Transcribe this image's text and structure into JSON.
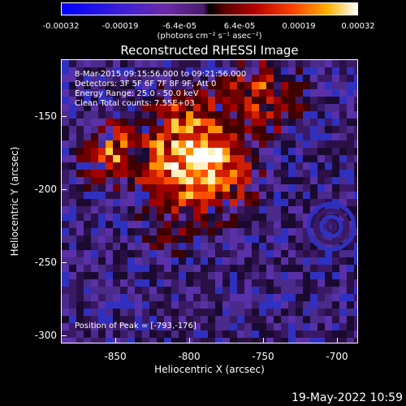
{
  "colorbar": {
    "ticks": [
      "-0.00032",
      "-0.00019",
      "-6.4e-05",
      "6.4e-05",
      "0.00019",
      "0.00032"
    ],
    "unit": "(photons cm⁻² s⁻¹ asec⁻²)"
  },
  "plot": {
    "title": "Reconstructed RHESSI Image",
    "info_lines": [
      "8-Mar-2015 09:15:56.000 to 09:21:56.000",
      "Detectors: 3F 5F 6F 7F 8F 9F, Att 0",
      "Energy Range: 25.0 - 50.0 keV",
      "Clean     Total counts: 7.55E+03"
    ],
    "peak_text": "Position of Peak = [-793,-176]",
    "xlabel": "Heliocentric X (arcsec)",
    "ylabel": "Heliocentric Y (arcsec)",
    "xticks": [
      "-850",
      "-800",
      "-750",
      "-700"
    ],
    "yticks": [
      "-150",
      "-200",
      "-250",
      "-300"
    ]
  },
  "timestamp": "19-May-2022 10:59",
  "colors": {
    "background": "#000000",
    "foreground": "#ffffff",
    "image_low": "#2a1046",
    "image_high": "#ffffff"
  }
}
